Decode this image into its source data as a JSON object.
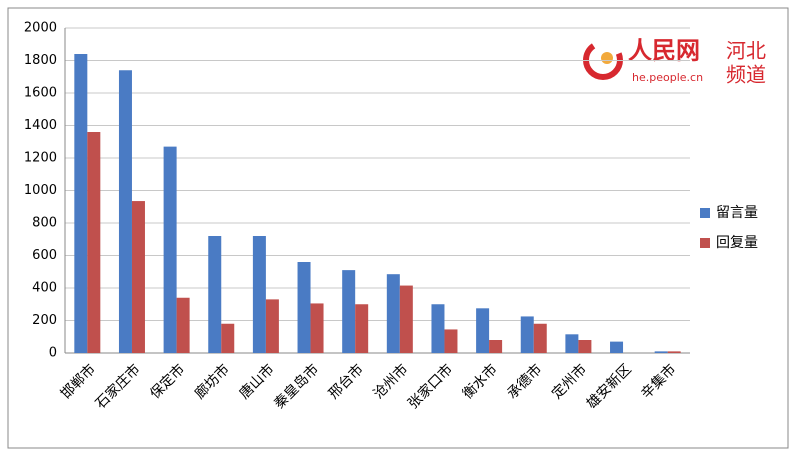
{
  "chart_data": {
    "type": "bar",
    "categories": [
      "邯郸市",
      "石家庄市",
      "保定市",
      "廊坊市",
      "唐山市",
      "秦皇岛市",
      "邢台市",
      "沧州市",
      "张家口市",
      "衡水市",
      "承德市",
      "定州市",
      "雄安新区",
      "辛集市"
    ],
    "series": [
      {
        "name": "留言量",
        "color": "#4a7bc4",
        "values": [
          1840,
          1740,
          1270,
          720,
          720,
          560,
          510,
          485,
          300,
          275,
          225,
          115,
          70,
          10
        ]
      },
      {
        "name": "回复量",
        "color": "#c0504d",
        "values": [
          1360,
          935,
          340,
          180,
          330,
          305,
          300,
          415,
          145,
          80,
          180,
          80,
          0,
          10
        ]
      }
    ],
    "ylim": [
      0,
      2000
    ],
    "yticks": [
      0,
      200,
      400,
      600,
      800,
      1000,
      1200,
      1400,
      1600,
      1800,
      2000
    ],
    "grid": true,
    "legend": "right"
  },
  "logo": {
    "brand": "人民网",
    "domain": "he.people.cn",
    "channel_line1": "河北",
    "channel_line2": "频道"
  }
}
